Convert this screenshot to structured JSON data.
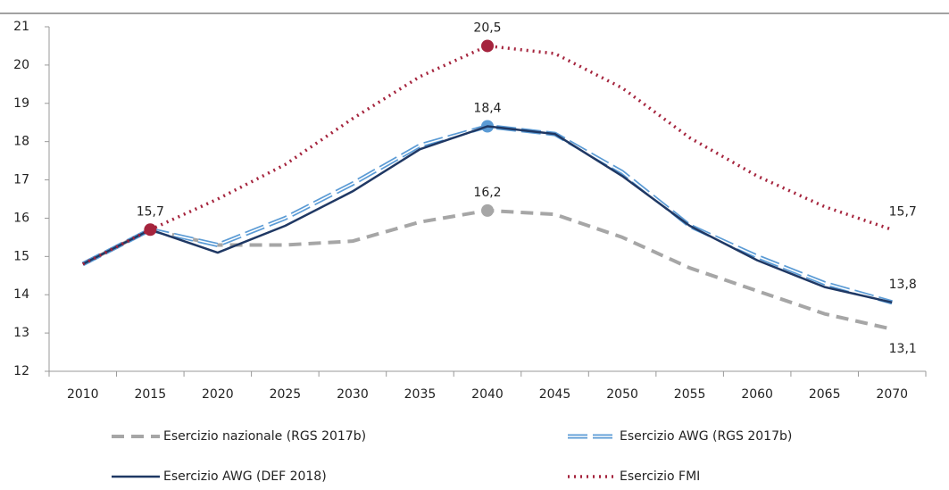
{
  "chart_data": {
    "type": "line",
    "categories": [
      "2010",
      "2015",
      "2020",
      "2025",
      "2030",
      "2035",
      "2040",
      "2045",
      "2050",
      "2055",
      "2060",
      "2065",
      "2070"
    ],
    "ylim": [
      12,
      21
    ],
    "yticks": [
      12,
      13,
      14,
      15,
      16,
      17,
      18,
      19,
      20,
      21
    ],
    "legend": "bottom",
    "series": [
      {
        "name": "Esercizio nazionale (RGS 2017b)",
        "color": "#a6a6a6",
        "style": "dashed",
        "values": [
          14.8,
          15.7,
          15.3,
          15.3,
          15.4,
          15.9,
          16.2,
          16.1,
          15.5,
          14.7,
          14.1,
          13.5,
          13.1
        ],
        "value_labels": [
          null,
          null,
          null,
          null,
          null,
          null,
          "16,2",
          null,
          null,
          null,
          null,
          null,
          "13,1"
        ],
        "markers": [
          6
        ]
      },
      {
        "name": "Esercizio AWG (RGS 2017b)",
        "color": "#5b9bd5",
        "style": "double-dashed",
        "values": [
          14.8,
          15.7,
          15.3,
          16.0,
          16.9,
          17.9,
          18.4,
          18.2,
          17.2,
          15.8,
          15.0,
          14.3,
          13.8
        ],
        "value_labels": [
          null,
          null,
          null,
          null,
          null,
          null,
          "18,4",
          null,
          null,
          null,
          null,
          null,
          null
        ],
        "markers": [
          6
        ]
      },
      {
        "name": "Esercizio AWG (DEF 2018)",
        "color": "#1f3864",
        "style": "solid",
        "values": [
          14.8,
          15.7,
          15.1,
          15.8,
          16.7,
          17.8,
          18.4,
          18.2,
          17.1,
          15.8,
          14.9,
          14.2,
          13.8
        ],
        "value_labels": [
          null,
          null,
          null,
          null,
          null,
          null,
          null,
          null,
          null,
          null,
          null,
          null,
          "13,8"
        ],
        "markers": []
      },
      {
        "name": "Esercizio FMI",
        "color": "#a5243d",
        "style": "dotted",
        "values": [
          14.8,
          15.7,
          16.5,
          17.4,
          18.6,
          19.7,
          20.5,
          20.3,
          19.4,
          18.1,
          17.1,
          16.3,
          15.7
        ],
        "value_labels": [
          null,
          "15,7",
          null,
          null,
          null,
          null,
          "20,5",
          null,
          null,
          null,
          null,
          null,
          "15,7"
        ],
        "markers": [
          1,
          6
        ]
      }
    ]
  }
}
